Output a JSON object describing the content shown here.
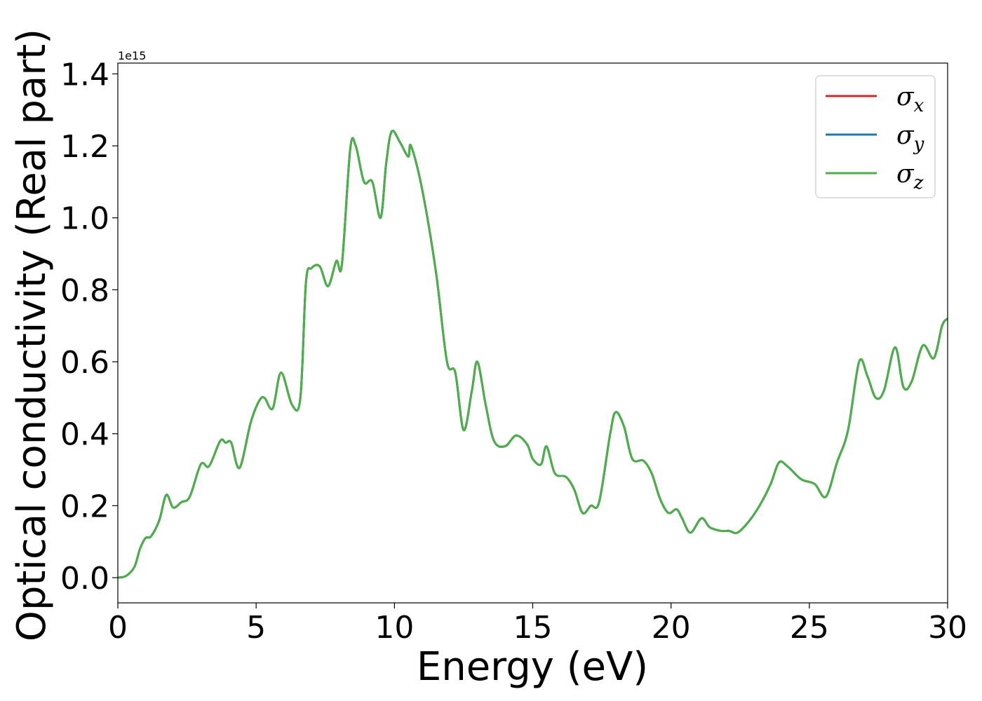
{
  "chart_data": {
    "type": "line",
    "title": "",
    "xlabel": "Energy (eV)",
    "ylabel": "Optical conductivity (Real part)",
    "y_offset_label": "1e15",
    "xlim": [
      0,
      30
    ],
    "ylim": [
      -0.07,
      1.43
    ],
    "xticks": [
      0,
      5,
      10,
      15,
      20,
      25,
      30
    ],
    "xtick_labels": [
      "0",
      "5",
      "10",
      "15",
      "20",
      "25",
      "30"
    ],
    "yticks": [
      0.0,
      0.2,
      0.4,
      0.6,
      0.8,
      1.0,
      1.2,
      1.4
    ],
    "ytick_labels": [
      "0.0",
      "0.2",
      "0.4",
      "0.6",
      "0.8",
      "1.0",
      "1.2",
      "1.4"
    ],
    "grid": false,
    "legend_position": "top-right",
    "x": [
      0,
      0.3,
      0.6,
      0.8,
      1.0,
      1.2,
      1.5,
      1.75,
      2.0,
      2.3,
      2.6,
      3.0,
      3.3,
      3.7,
      3.9,
      4.1,
      4.4,
      4.8,
      5.1,
      5.3,
      5.6,
      5.9,
      6.3,
      6.6,
      6.8,
      7.0,
      7.3,
      7.6,
      7.9,
      8.1,
      8.4,
      8.6,
      8.9,
      9.2,
      9.5,
      9.7,
      9.9,
      10.2,
      10.5,
      10.6,
      11.0,
      11.5,
      11.9,
      12.2,
      12.5,
      12.8,
      13.0,
      13.3,
      13.6,
      14.0,
      14.4,
      14.8,
      15.0,
      15.3,
      15.5,
      15.8,
      16.2,
      16.5,
      16.8,
      17.1,
      17.4,
      17.8,
      18.0,
      18.3,
      18.6,
      19.0,
      19.3,
      19.6,
      19.9,
      20.2,
      20.4,
      20.7,
      21.1,
      21.4,
      21.8,
      22.1,
      22.4,
      22.8,
      23.2,
      23.6,
      23.9,
      24.2,
      24.6,
      24.8,
      25.2,
      25.6,
      26.0,
      26.4,
      26.8,
      27.1,
      27.4,
      27.7,
      28.1,
      28.4,
      28.7,
      29.1,
      29.5,
      29.8,
      30.0
    ],
    "series": [
      {
        "name": "σx",
        "color": "#d62728",
        "values": [
          0.0,
          0.005,
          0.03,
          0.08,
          0.11,
          0.115,
          0.16,
          0.23,
          0.195,
          0.21,
          0.225,
          0.315,
          0.31,
          0.38,
          0.375,
          0.375,
          0.305,
          0.43,
          0.49,
          0.5,
          0.47,
          0.57,
          0.48,
          0.5,
          0.82,
          0.86,
          0.865,
          0.81,
          0.88,
          0.87,
          1.19,
          1.2,
          1.1,
          1.1,
          1.0,
          1.15,
          1.24,
          1.21,
          1.17,
          1.2,
          1.08,
          0.85,
          0.6,
          0.57,
          0.41,
          0.52,
          0.6,
          0.48,
          0.38,
          0.365,
          0.395,
          0.37,
          0.33,
          0.315,
          0.365,
          0.29,
          0.28,
          0.245,
          0.18,
          0.2,
          0.21,
          0.4,
          0.46,
          0.42,
          0.33,
          0.325,
          0.29,
          0.22,
          0.18,
          0.19,
          0.165,
          0.125,
          0.165,
          0.14,
          0.13,
          0.13,
          0.125,
          0.155,
          0.2,
          0.26,
          0.32,
          0.31,
          0.28,
          0.27,
          0.26,
          0.225,
          0.32,
          0.41,
          0.6,
          0.56,
          0.5,
          0.52,
          0.64,
          0.53,
          0.545,
          0.645,
          0.61,
          0.7,
          0.72
        ]
      },
      {
        "name": "σy",
        "color": "#1f77b4",
        "values": [
          0.0,
          0.005,
          0.03,
          0.08,
          0.11,
          0.115,
          0.16,
          0.23,
          0.195,
          0.21,
          0.225,
          0.315,
          0.31,
          0.38,
          0.375,
          0.375,
          0.305,
          0.43,
          0.49,
          0.5,
          0.47,
          0.57,
          0.48,
          0.5,
          0.82,
          0.86,
          0.865,
          0.81,
          0.88,
          0.87,
          1.19,
          1.2,
          1.1,
          1.1,
          1.0,
          1.15,
          1.24,
          1.21,
          1.17,
          1.2,
          1.08,
          0.85,
          0.6,
          0.57,
          0.41,
          0.52,
          0.6,
          0.48,
          0.38,
          0.365,
          0.395,
          0.37,
          0.33,
          0.315,
          0.365,
          0.29,
          0.28,
          0.245,
          0.18,
          0.2,
          0.21,
          0.4,
          0.46,
          0.42,
          0.33,
          0.325,
          0.29,
          0.22,
          0.18,
          0.19,
          0.165,
          0.125,
          0.165,
          0.14,
          0.13,
          0.13,
          0.125,
          0.155,
          0.2,
          0.26,
          0.32,
          0.31,
          0.28,
          0.27,
          0.26,
          0.225,
          0.32,
          0.41,
          0.6,
          0.56,
          0.5,
          0.52,
          0.64,
          0.53,
          0.545,
          0.645,
          0.61,
          0.7,
          0.72
        ]
      },
      {
        "name": "σz",
        "color": "#4daf4a",
        "values": [
          0.0,
          0.005,
          0.03,
          0.08,
          0.11,
          0.115,
          0.16,
          0.23,
          0.195,
          0.21,
          0.225,
          0.315,
          0.31,
          0.38,
          0.375,
          0.375,
          0.305,
          0.43,
          0.49,
          0.5,
          0.47,
          0.57,
          0.48,
          0.5,
          0.82,
          0.86,
          0.865,
          0.81,
          0.88,
          0.87,
          1.19,
          1.2,
          1.1,
          1.1,
          1.0,
          1.15,
          1.24,
          1.21,
          1.17,
          1.2,
          1.08,
          0.85,
          0.6,
          0.57,
          0.41,
          0.52,
          0.6,
          0.48,
          0.38,
          0.365,
          0.395,
          0.37,
          0.33,
          0.315,
          0.365,
          0.29,
          0.28,
          0.245,
          0.18,
          0.2,
          0.21,
          0.4,
          0.46,
          0.42,
          0.33,
          0.325,
          0.29,
          0.22,
          0.18,
          0.19,
          0.165,
          0.125,
          0.165,
          0.14,
          0.13,
          0.13,
          0.125,
          0.155,
          0.2,
          0.26,
          0.32,
          0.31,
          0.28,
          0.27,
          0.26,
          0.225,
          0.32,
          0.41,
          0.6,
          0.56,
          0.5,
          0.52,
          0.64,
          0.53,
          0.545,
          0.645,
          0.61,
          0.7,
          0.72
        ]
      }
    ],
    "legend": [
      {
        "symbol": "σ",
        "sub": "x"
      },
      {
        "symbol": "σ",
        "sub": "y"
      },
      {
        "symbol": "σ",
        "sub": "z"
      }
    ]
  }
}
